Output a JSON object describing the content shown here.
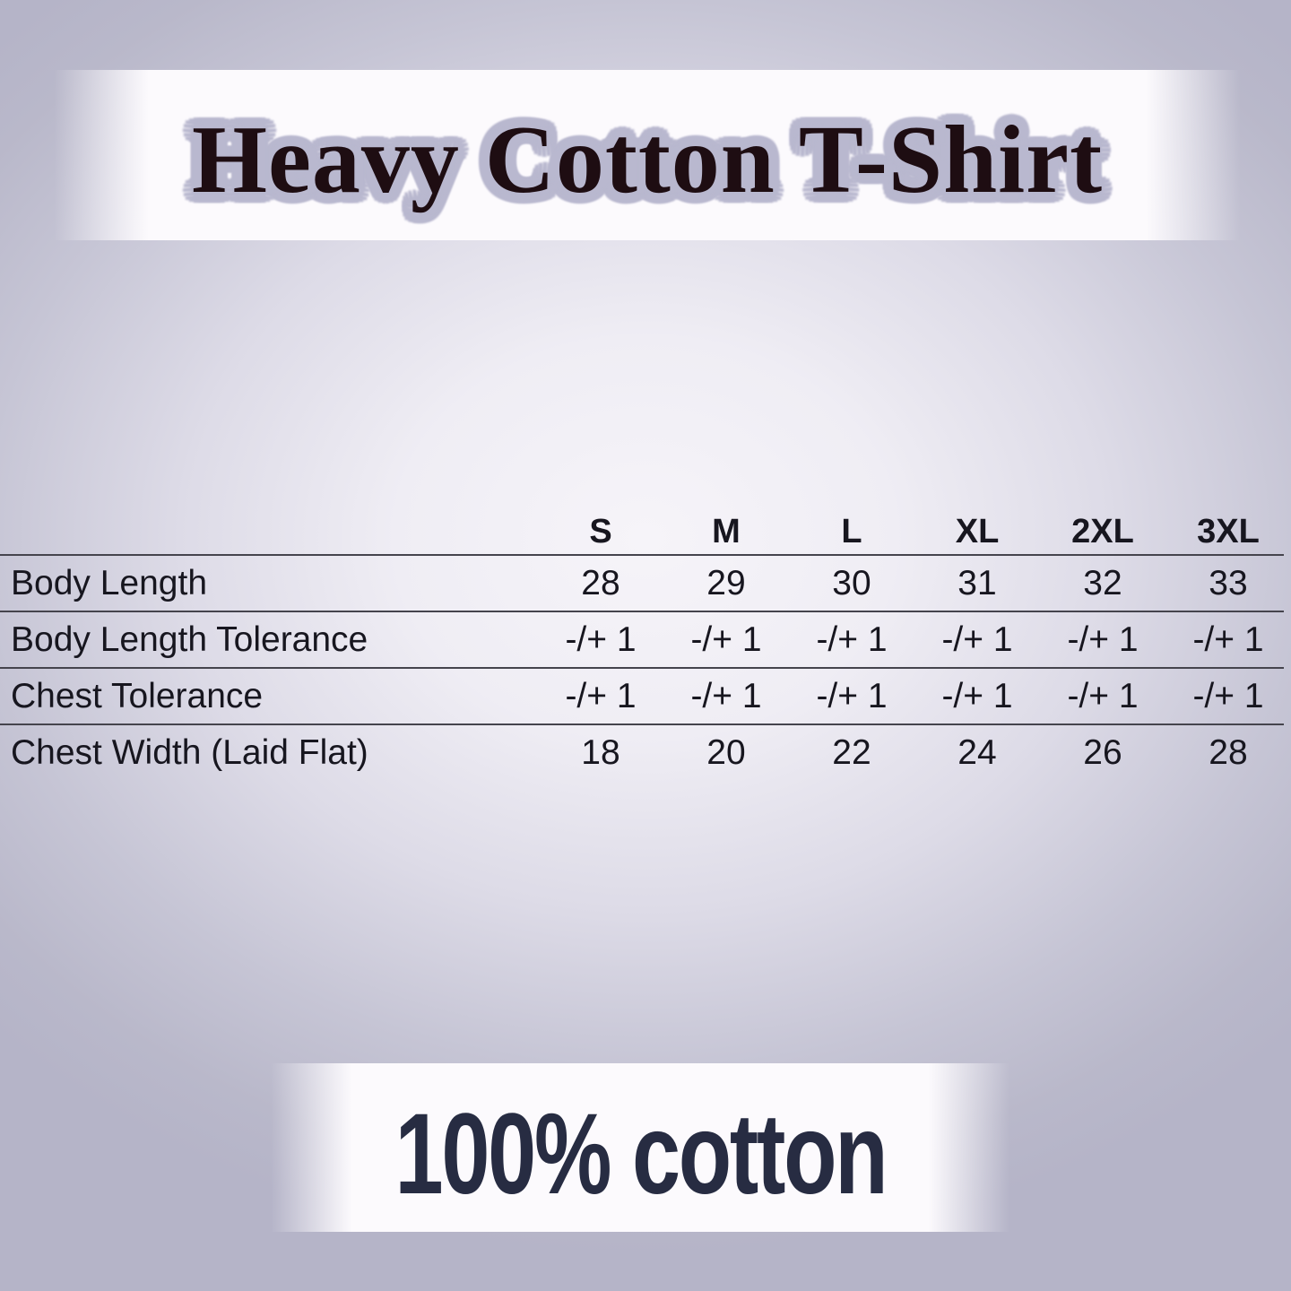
{
  "title": "Heavy Cotton T-Shirt",
  "footer": "100% cotton",
  "colors": {
    "background_edge": "#b5b4c8",
    "background_center": "#f6f4f9",
    "band": "#fcfafd",
    "title_text": "#1e0d12",
    "title_halo": "#b9b8cf",
    "table_text": "#17161f",
    "divider": "#45444d",
    "footer_text": "#272c42"
  },
  "chart_data": {
    "type": "table",
    "title": "Heavy Cotton T-Shirt",
    "columns": [
      "S",
      "M",
      "L",
      "XL",
      "2XL",
      "3XL"
    ],
    "rows": [
      {
        "label": "Body Length",
        "values": [
          "28",
          "29",
          "30",
          "31",
          "32",
          "33"
        ]
      },
      {
        "label": "Body Length Tolerance",
        "values": [
          "-/+ 1",
          "-/+ 1",
          "-/+ 1",
          "-/+ 1",
          "-/+ 1",
          "-/+ 1"
        ]
      },
      {
        "label": "Chest Tolerance",
        "values": [
          "-/+ 1",
          "-/+ 1",
          "-/+ 1",
          "-/+ 1",
          "-/+ 1",
          "-/+ 1"
        ]
      },
      {
        "label": "Chest Width (Laid Flat)",
        "values": [
          "18",
          "20",
          "22",
          "24",
          "26",
          "28"
        ]
      }
    ],
    "footnote": "100% cotton",
    "layout_hints": {
      "grid": "horizontal row dividers only",
      "header_position": "top",
      "label_column": "left"
    }
  }
}
